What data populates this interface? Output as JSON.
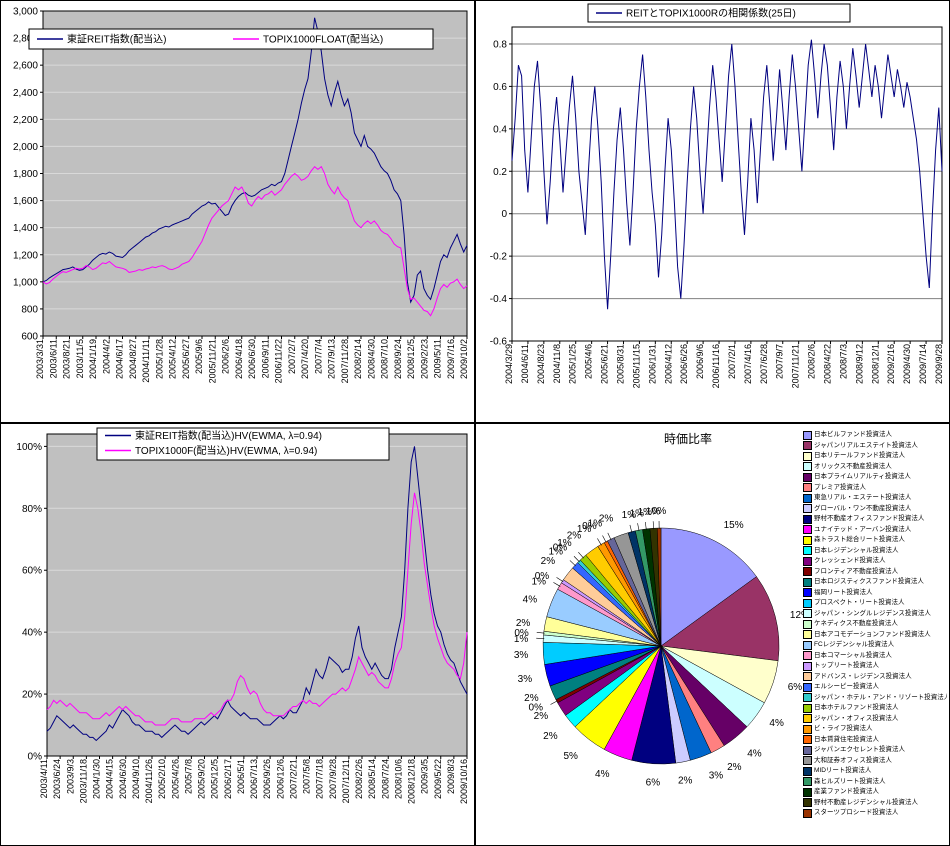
{
  "chart_data": [
    {
      "id": "reit-index",
      "type": "line",
      "title": "",
      "legend_labels": [
        "東証REIT指数(配当込)",
        "TOPIX1000FLOAT(配当込)"
      ],
      "ylim": [
        600,
        3000
      ],
      "y_ticks": [
        3000,
        2800,
        2600,
        2400,
        2200,
        2000,
        1800,
        1600,
        1400,
        1200,
        1000,
        800,
        600
      ],
      "y_tick_labels": [
        "3,000",
        "2,800",
        "2,600",
        "2,400",
        "2,200",
        "2,000",
        "1,800",
        "1,600",
        "1,400",
        "1,200",
        "1,000",
        "800",
        "600"
      ],
      "plot_bg": "#C0C0C0",
      "grid_color": "#D9D9D9",
      "x_tick_labels": [
        "2003/3/31",
        "2003/6/11",
        "2003/8/21",
        "2003/11/5",
        "2004/1/19",
        "2004/4/2",
        "2004/6/17",
        "2004/8/27",
        "2004/11/11",
        "2005/1/28",
        "2005/4/12",
        "2005/6/27",
        "2005/9/6",
        "2005/11/21",
        "2006/2/6",
        "2006/4/18",
        "2006/6/30",
        "2006/9/11",
        "2006/11/22",
        "2007/2/7",
        "2007/4/20",
        "2007/7/4",
        "2007/9/13",
        "2007/11/28",
        "2008/2/14",
        "2008/4/30",
        "2008/7/10",
        "2008/9/24",
        "2008/12/5",
        "2009/2/23",
        "2009/5/11",
        "2009/7/16",
        "2009/10/2"
      ],
      "series": [
        {
          "name": "東証REIT指数(配当込)",
          "color": "#000080",
          "values": [
            1000,
            1010,
            1030,
            1045,
            1060,
            1075,
            1090,
            1095,
            1100,
            1110,
            1095,
            1085,
            1090,
            1110,
            1130,
            1160,
            1180,
            1200,
            1210,
            1205,
            1220,
            1210,
            1190,
            1185,
            1180,
            1200,
            1230,
            1250,
            1270,
            1290,
            1310,
            1330,
            1340,
            1360,
            1370,
            1390,
            1400,
            1410,
            1405,
            1420,
            1430,
            1440,
            1450,
            1460,
            1470,
            1500,
            1520,
            1540,
            1560,
            1570,
            1590,
            1575,
            1580,
            1550,
            1520,
            1490,
            1500,
            1560,
            1600,
            1630,
            1650,
            1660,
            1640,
            1630,
            1640,
            1660,
            1680,
            1690,
            1700,
            1720,
            1710,
            1730,
            1740,
            1800,
            1900,
            2000,
            2100,
            2200,
            2320,
            2420,
            2500,
            2700,
            2950,
            2850,
            2700,
            2500,
            2380,
            2300,
            2400,
            2480,
            2380,
            2300,
            2350,
            2250,
            2100,
            2050,
            2000,
            2080,
            2000,
            1980,
            1950,
            1900,
            1850,
            1820,
            1800,
            1750,
            1680,
            1650,
            1600,
            1350,
            1000,
            850,
            900,
            1050,
            1080,
            950,
            900,
            870,
            950,
            1050,
            1150,
            1200,
            1180,
            1250,
            1300,
            1350,
            1280,
            1220,
            1270
          ]
        },
        {
          "name": "TOPIX1000FLOAT(配当込)",
          "color": "#FF00FF",
          "values": [
            1000,
            985,
            995,
            1020,
            1040,
            1060,
            1075,
            1070,
            1080,
            1090,
            1100,
            1095,
            1100,
            1120,
            1110,
            1090,
            1100,
            1120,
            1140,
            1135,
            1150,
            1130,
            1110,
            1105,
            1100,
            1090,
            1070,
            1075,
            1080,
            1090,
            1085,
            1095,
            1100,
            1110,
            1105,
            1115,
            1120,
            1110,
            1095,
            1090,
            1100,
            1110,
            1130,
            1140,
            1150,
            1180,
            1220,
            1260,
            1300,
            1360,
            1420,
            1470,
            1500,
            1530,
            1560,
            1580,
            1600,
            1650,
            1700,
            1680,
            1700,
            1650,
            1580,
            1560,
            1600,
            1630,
            1610,
            1640,
            1650,
            1670,
            1640,
            1660,
            1680,
            1720,
            1750,
            1780,
            1800,
            1780,
            1750,
            1760,
            1780,
            1820,
            1850,
            1830,
            1850,
            1800,
            1720,
            1680,
            1650,
            1700,
            1650,
            1620,
            1600,
            1520,
            1450,
            1420,
            1400,
            1430,
            1450,
            1430,
            1450,
            1420,
            1380,
            1360,
            1350,
            1320,
            1280,
            1260,
            1250,
            1100,
            950,
            870,
            880,
            850,
            820,
            790,
            780,
            750,
            800,
            880,
            950,
            980,
            960,
            990,
            1000,
            1020,
            980,
            950,
            970
          ]
        }
      ]
    },
    {
      "id": "correlation",
      "type": "line",
      "legend_labels": [
        "REITとTOPIX1000Rの相関係数(25日)"
      ],
      "ylim": [
        -0.6,
        0.88
      ],
      "y_ticks": [
        0.8,
        0.6,
        0.4,
        0.2,
        0,
        -0.2,
        -0.4,
        -0.6
      ],
      "y_tick_labels": [
        "0.8",
        "0.6",
        "0.4",
        "0.2",
        "0",
        "-0.2",
        "-0.4",
        "-0.6"
      ],
      "plot_bg": "#FFFFFF",
      "grid_color": "#808080",
      "x_tick_labels": [
        "2004/3/29",
        "2004/6/11",
        "2004/8/23",
        "2004/11/8",
        "2005/1/25",
        "2005/4/6",
        "2005/6/21",
        "2005/8/31",
        "2005/11/15",
        "2006/1/31",
        "2006/4/12",
        "2006/6/26",
        "2006/9/6",
        "2006/11/16",
        "2007/2/1",
        "2007/4/16",
        "2007/6/28",
        "2007/9/7",
        "2007/11/21",
        "2008/2/6",
        "2008/4/22",
        "2008/7/3",
        "2008/9/12",
        "2008/12/1",
        "2009/2/16",
        "2009/4/30",
        "2009/7/14",
        "2009/9/28"
      ],
      "series": [
        {
          "name": "REITとTOPIX1000Rの相関係数(25日)",
          "color": "#000080",
          "values": [
            0.25,
            0.45,
            0.7,
            0.65,
            0.3,
            0.1,
            0.35,
            0.6,
            0.72,
            0.5,
            0.2,
            -0.05,
            0.15,
            0.4,
            0.55,
            0.35,
            0.1,
            0.3,
            0.5,
            0.65,
            0.45,
            0.2,
            0.05,
            -0.1,
            0.2,
            0.45,
            0.6,
            0.4,
            0.15,
            -0.2,
            -0.45,
            -0.2,
            0.1,
            0.35,
            0.5,
            0.3,
            0.05,
            -0.15,
            0.1,
            0.4,
            0.6,
            0.75,
            0.55,
            0.3,
            0.1,
            -0.05,
            -0.3,
            -0.1,
            0.2,
            0.45,
            0.3,
            0.05,
            -0.25,
            -0.4,
            -0.15,
            0.15,
            0.4,
            0.6,
            0.45,
            0.2,
            0.0,
            0.25,
            0.5,
            0.7,
            0.55,
            0.35,
            0.15,
            0.4,
            0.65,
            0.8,
            0.6,
            0.35,
            0.1,
            -0.1,
            0.15,
            0.45,
            0.3,
            0.05,
            0.3,
            0.55,
            0.7,
            0.5,
            0.25,
            0.45,
            0.68,
            0.5,
            0.3,
            0.55,
            0.75,
            0.6,
            0.4,
            0.2,
            0.45,
            0.7,
            0.82,
            0.65,
            0.45,
            0.65,
            0.8,
            0.7,
            0.5,
            0.3,
            0.55,
            0.72,
            0.6,
            0.4,
            0.6,
            0.78,
            0.65,
            0.5,
            0.65,
            0.8,
            0.68,
            0.55,
            0.7,
            0.6,
            0.45,
            0.6,
            0.75,
            0.65,
            0.55,
            0.68,
            0.6,
            0.5,
            0.62,
            0.55,
            0.45,
            0.35,
            0.2,
            0.0,
            -0.2,
            -0.35,
            0.0,
            0.3,
            0.5,
            0.2
          ]
        }
      ]
    },
    {
      "id": "hv",
      "type": "line",
      "legend_labels": [
        "東証REIT指数(配当込)HV(EWMA, λ=0.94)",
        "TOPIX1000F(配当込)HV(EWMA, λ=0.94)"
      ],
      "ylim": [
        0,
        104
      ],
      "y_ticks": [
        100,
        80,
        60,
        40,
        20,
        0
      ],
      "y_tick_labels": [
        "100%",
        "80%",
        "60%",
        "40%",
        "20%",
        "0%"
      ],
      "plot_bg": "#C0C0C0",
      "grid_color": "#D9D9D9",
      "x_tick_labels": [
        "2003/4/11",
        "2003/6/24",
        "2003/9/3",
        "2003/11/18",
        "2004/1/30",
        "2004/4/15",
        "2004/6/30",
        "2004/9/10",
        "2004/11/26",
        "2005/2/10",
        "2005/4/26",
        "2005/7/8",
        "2005/9/20",
        "2005/12/5",
        "2006/2/17",
        "2006/5/1",
        "2006/7/13",
        "2006/9/26",
        "2006/12/6",
        "2007/2/21",
        "2007/5/8",
        "2007/7/18",
        "2007/9/28",
        "2007/12/11",
        "2008/2/26",
        "2008/5/14",
        "2008/7/24",
        "2008/10/6",
        "2008/12/18",
        "2009/3/5",
        "2009/5/22",
        "2009/8/3",
        "2009/10/16"
      ],
      "series": [
        {
          "name": "東証REIT指数(配当込)HV(EWMA, λ=0.94)",
          "color": "#000080",
          "values": [
            8,
            9,
            11,
            13,
            12,
            11,
            10,
            9,
            10,
            9,
            8,
            7,
            7,
            6,
            6,
            5,
            6,
            7,
            8,
            10,
            9,
            11,
            13,
            15,
            14,
            13,
            11,
            10,
            10,
            9,
            8,
            8,
            8,
            7,
            7,
            6,
            7,
            8,
            9,
            10,
            9,
            8,
            8,
            7,
            8,
            9,
            10,
            11,
            10,
            11,
            12,
            13,
            12,
            14,
            16,
            18,
            16,
            15,
            14,
            13,
            14,
            13,
            12,
            12,
            12,
            11,
            10,
            10,
            10,
            11,
            12,
            13,
            12,
            13,
            15,
            14,
            14,
            16,
            18,
            22,
            20,
            24,
            28,
            26,
            25,
            28,
            32,
            31,
            30,
            29,
            27,
            28,
            28,
            32,
            38,
            42,
            35,
            32,
            30,
            28,
            30,
            28,
            26,
            25,
            25,
            28,
            35,
            40,
            45,
            60,
            80,
            95,
            100,
            90,
            80,
            70,
            60,
            52,
            46,
            42,
            40,
            36,
            33,
            31,
            30,
            27,
            24,
            22,
            20
          ]
        },
        {
          "name": "TOPIX1000F(配当込)HV(EWMA, λ=0.94)",
          "color": "#FF00FF",
          "values": [
            15,
            16,
            18,
            17,
            18,
            17,
            16,
            17,
            16,
            15,
            14,
            14,
            14,
            13,
            12,
            12,
            12,
            13,
            14,
            13,
            14,
            15,
            16,
            15,
            16,
            15,
            14,
            13,
            13,
            12,
            11,
            11,
            11,
            10,
            10,
            10,
            10,
            11,
            12,
            12,
            12,
            11,
            11,
            11,
            11,
            12,
            12,
            12,
            12,
            13,
            14,
            13,
            14,
            15,
            17,
            18,
            18,
            20,
            24,
            26,
            25,
            22,
            20,
            21,
            20,
            17,
            15,
            14,
            14,
            13,
            13,
            13,
            13,
            14,
            15,
            16,
            16,
            17,
            18,
            17,
            18,
            17,
            17,
            16,
            17,
            18,
            19,
            20,
            20,
            21,
            22,
            21,
            22,
            25,
            28,
            32,
            30,
            28,
            26,
            27,
            26,
            24,
            23,
            22,
            22,
            25,
            30,
            33,
            35,
            45,
            60,
            75,
            85,
            80,
            72,
            62,
            55,
            48,
            42,
            38,
            35,
            32,
            30,
            29,
            28,
            26,
            25,
            30,
            40
          ]
        }
      ]
    },
    {
      "id": "market-cap-pie",
      "type": "pie",
      "title": "時価比率",
      "values": [
        15,
        12,
        6,
        4,
        4,
        2,
        3,
        2,
        6,
        4,
        5,
        2,
        2,
        0.5,
        2,
        3,
        3,
        1,
        0.5,
        2,
        4,
        1,
        0.5,
        2,
        1,
        0.5,
        1,
        2,
        1,
        0.5,
        1,
        2,
        1,
        1,
        1,
        1,
        0.5
      ],
      "pct_labels": [
        "15%",
        "12%",
        "6%",
        "4%",
        "4%",
        "2%",
        "3%",
        "2%",
        "6%",
        "4%",
        "5%",
        "2%",
        "2%",
        "0%",
        "2%",
        "3%",
        "3%",
        "1%",
        "0%",
        "2%",
        "4%",
        "1%",
        "0%",
        "2%",
        "1%",
        "0%",
        "1%",
        "2%",
        "1%",
        "0%",
        "1%",
        "2%",
        "1%",
        "1%",
        "1%",
        "1%",
        "0%"
      ],
      "colors": [
        "#9999FF",
        "#993366",
        "#FFFFCC",
        "#CCFFFF",
        "#660066",
        "#FF8080",
        "#0066CC",
        "#CCCCFF",
        "#000080",
        "#FF00FF",
        "#FFFF00",
        "#00FFFF",
        "#800080",
        "#800000",
        "#008080",
        "#0000FF",
        "#00CCFF",
        "#CCFFFF",
        "#CCFFCC",
        "#FFFF99",
        "#99CCFF",
        "#FF99CC",
        "#CC99FF",
        "#FFCC99",
        "#3366FF",
        "#33CCCC",
        "#99CC00",
        "#FFCC00",
        "#FF9900",
        "#FF6600",
        "#666699",
        "#969696",
        "#003366",
        "#339966",
        "#003300",
        "#333300",
        "#993300"
      ],
      "legend": [
        "日本ビルファンド投資法人",
        "ジャパンリアルエステイト投資法人",
        "日本リテールファンド投資法人",
        "オリックス不動産投資法人",
        "日本プライムリアルティ投資法人",
        "プレミア投資法人",
        "東急リアル・エステート投資法人",
        "グローバル・ワン不動産投資法人",
        "野村不動産オフィスファンド投資法人",
        "ユナイテッド・アーバン投資法人",
        "森トラスト総合リート投資法人",
        "日本レジデンシャル投資法人",
        "クレッシェンド投資法人",
        "フロンティア不動産投資法人",
        "日本ロジスティクスファンド投資法人",
        "福岡リート投資法人",
        "プロスペクト・リート投資法人",
        "ジャパン・シングルレジデンス投資法人",
        "ケネディクス不動産投資法人",
        "日本アコモデーションファンド投資法人",
        "FCレジデンシャル投資法人",
        "日本コマーシャル投資法人",
        "トップリート投資法人",
        "アドバンス・レジデンス投資法人",
        "エルシーピー投資法人",
        "ジャパン・ホテル・アンド・リゾート投資法人",
        "日本ホテルファンド投資法人",
        "ジャパン・オフィス投資法人",
        "ビ・ライフ投資法人",
        "日本賃貸住宅投資法人",
        "ジャパンエクセレント投資法人",
        "大和証券オフィス投資法人",
        "MIDリート投資法人",
        "森ヒルズリート投資法人",
        "産業ファンド投資法人",
        "野村不動産レジデンシャル投資法人",
        "スターツプロシード投資法人"
      ]
    }
  ]
}
